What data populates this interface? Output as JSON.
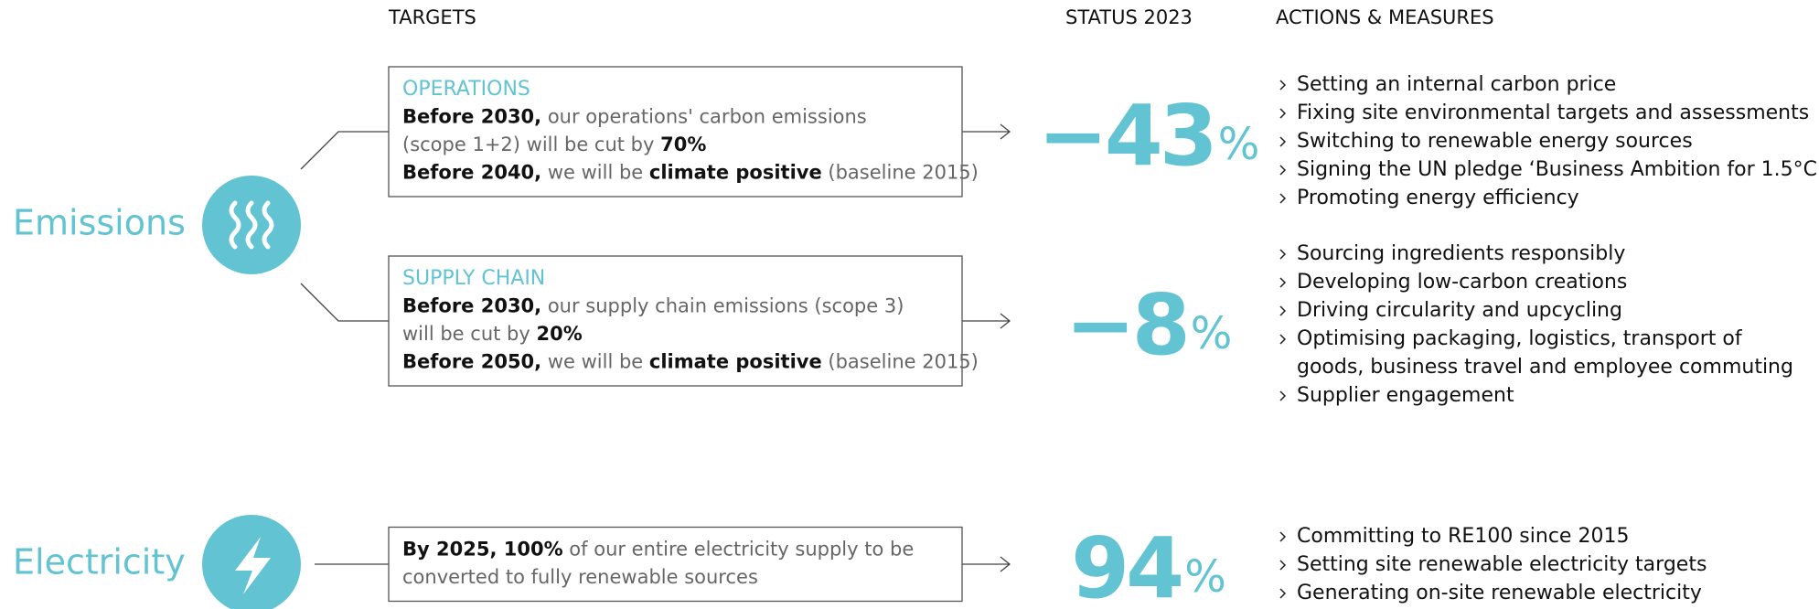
{
  "headers": {
    "targets": "TARGETS",
    "status": "STATUS 2023",
    "actions": "ACTIONS & MEASURES"
  },
  "sections": [
    {
      "label": "Emissions",
      "rows": [
        {
          "title": "OPERATIONS",
          "lines": [
            [
              {
                "text": "Before 2030,",
                "bold": true
              },
              {
                "text": " our operations' carbon emissions"
              }
            ],
            [
              {
                "text": "(scope 1+2) will be cut by "
              },
              {
                "text": "70%",
                "bold": true
              }
            ],
            [
              {
                "text": "Before 2040,",
                "bold": true
              },
              {
                "text": " we will be "
              },
              {
                "text": "climate positive",
                "bold": true
              },
              {
                "text": " (baseline 2015)"
              }
            ]
          ],
          "status": {
            "value": "−43",
            "unit": "%"
          },
          "actions": [
            [
              "Setting an internal carbon price"
            ],
            [
              "Fixing site environmental targets and assessments"
            ],
            [
              "Switching to renewable energy sources"
            ],
            [
              "Signing the UN pledge ‘Business Ambition for 1.5°C’"
            ],
            [
              "Promoting energy efficiency"
            ]
          ]
        },
        {
          "title": "SUPPLY CHAIN",
          "lines": [
            [
              {
                "text": "Before 2030,",
                "bold": true
              },
              {
                "text": " our supply chain emissions (scope 3)"
              }
            ],
            [
              {
                "text": "will be cut by "
              },
              {
                "text": "20%",
                "bold": true
              }
            ],
            [
              {
                "text": "Before 2050,",
                "bold": true
              },
              {
                "text": " we will be "
              },
              {
                "text": "climate positive",
                "bold": true
              },
              {
                "text": " (baseline 2015)"
              }
            ]
          ],
          "status": {
            "value": "−8",
            "unit": "%"
          },
          "actions": [
            [
              "Sourcing ingredients responsibly"
            ],
            [
              "Developing low-carbon creations"
            ],
            [
              "Driving circularity and upcycling"
            ],
            [
              "Optimising packaging, logistics, transport of",
              "goods, business travel and employee commuting"
            ],
            [
              "Supplier engagement"
            ]
          ]
        }
      ]
    },
    {
      "label": "Electricity",
      "rows": [
        {
          "lines": [
            [
              {
                "text": "By 2025, 100%",
                "bold": true
              },
              {
                "text": " of our entire electricity supply to be"
              }
            ],
            [
              {
                "text": "converted to fully renewable sources"
              }
            ]
          ],
          "status": {
            "value": "94",
            "unit": "%"
          },
          "actions": [
            [
              "Committing to RE100 since 2015"
            ],
            [
              "Setting site renewable electricity targets"
            ],
            [
              "Generating on-site renewable electricity"
            ]
          ]
        }
      ]
    }
  ]
}
